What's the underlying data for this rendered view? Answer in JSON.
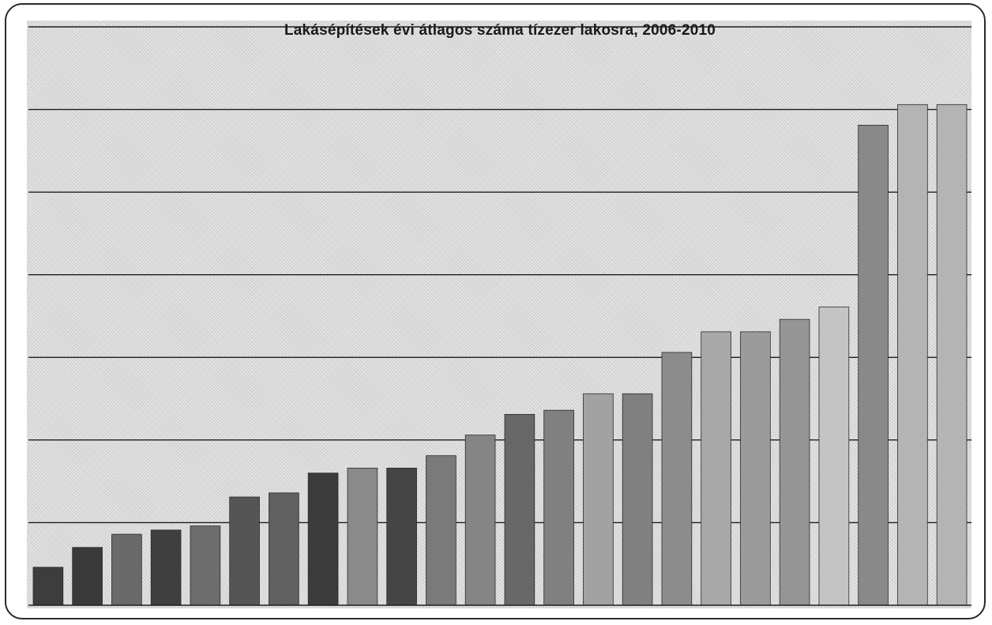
{
  "chart_data": {
    "type": "bar",
    "title": "Lakásépítések évi átlagos száma tízezer lakosra, 2006-2010",
    "xlabel": "",
    "ylabel": "",
    "ylim": [
      0,
      70
    ],
    "grid": true,
    "categories": [
      "",
      "",
      "",
      "",
      "",
      "",
      "",
      "",
      "",
      "",
      "",
      "",
      "",
      "",
      "",
      "",
      "",
      "",
      "",
      "",
      "",
      "",
      "",
      ""
    ],
    "values": [
      4.6,
      7.0,
      8.6,
      9.1,
      9.6,
      13.1,
      13.6,
      16.0,
      16.6,
      16.6,
      18.1,
      20.6,
      23.1,
      23.6,
      25.6,
      25.6,
      30.6,
      33.1,
      33.1,
      34.6,
      36.1,
      58.1,
      60.6,
      60.6
    ],
    "colors": [
      "#3d3d3d",
      "#3a3a3a",
      "#6a6a6a",
      "#3f3f3f",
      "#6d6d6d",
      "#555555",
      "#606060",
      "#3b3b3b",
      "#8a8a8a",
      "#454545",
      "#7a7a7a",
      "#858585",
      "#686868",
      "#808080",
      "#a2a2a2",
      "#808080",
      "#8c8c8c",
      "#a8a8a8",
      "#9b9b9b",
      "#959595",
      "#c4c4c4",
      "#898989",
      "#b4b4b4",
      "#b4b4b4"
    ]
  }
}
